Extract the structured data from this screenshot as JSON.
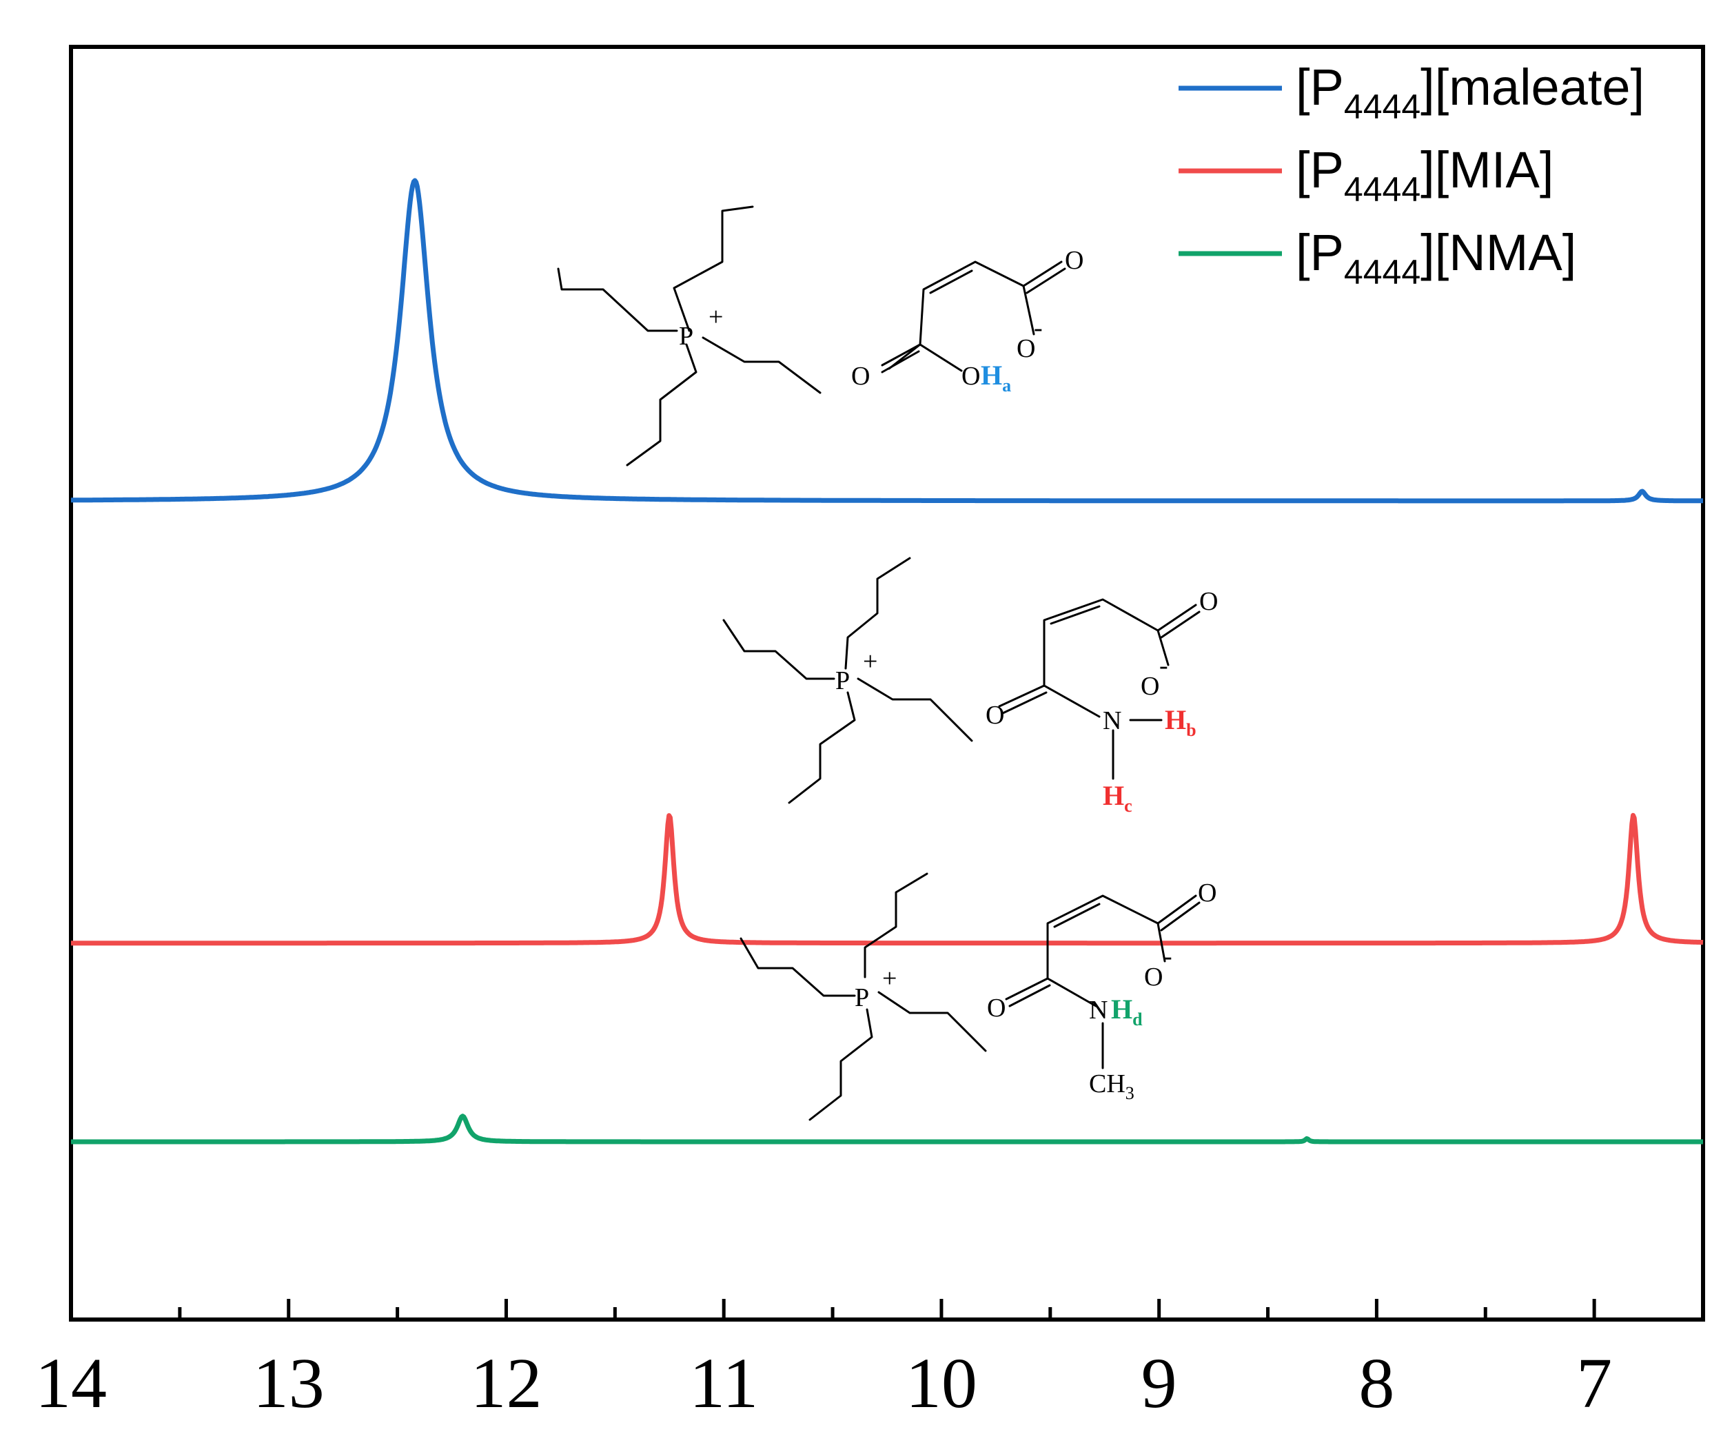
{
  "chart_data": {
    "type": "line",
    "title": "",
    "xlabel": "",
    "ylabel": "",
    "x_reversed": true,
    "xlim": [
      14,
      6.5
    ],
    "major_ticks": [
      14,
      13,
      12,
      11,
      10,
      9,
      8,
      7
    ],
    "minor_ticks": [
      13.5,
      12.5,
      11.5,
      10.5,
      9.5,
      8.5,
      7.5
    ],
    "tick_labels": [
      "14",
      "13",
      "12",
      "11",
      "10",
      "9",
      "8",
      "7"
    ],
    "grid": false,
    "legend_position": "top-right",
    "series": [
      {
        "name_main": "[P",
        "name_sub": "4444",
        "name_rest": "][maleate]",
        "color": "#1f6fc8",
        "offset": 2.0,
        "peaks": [
          {
            "center": 12.42,
            "height": 1.0,
            "width": 0.08
          },
          {
            "center": 6.78,
            "height": 0.03,
            "width": 0.02
          }
        ]
      },
      {
        "name_main": "[P",
        "name_sub": "4444",
        "name_rest": "][MIA]",
        "color": "#f04b4b",
        "offset": 0.62,
        "peaks": [
          {
            "center": 11.25,
            "height": 0.4,
            "width": 0.025
          },
          {
            "center": 6.82,
            "height": 0.4,
            "width": 0.025
          }
        ]
      },
      {
        "name_main": "[P",
        "name_sub": "4444",
        "name_rest": "][NMA]",
        "color": "#11a36a",
        "offset": 0.0,
        "peaks": [
          {
            "center": 12.2,
            "height": 0.08,
            "width": 0.03
          },
          {
            "center": 8.32,
            "height": 0.01,
            "width": 0.01
          }
        ]
      }
    ],
    "annotations": {
      "cation_plus": "+",
      "anion_oxygen": "O",
      "anion_charge": "-",
      "phosphorus": "P",
      "hydroxyl_o": "O",
      "nitrogen": "N",
      "proton_a": "H",
      "proton_a_sub": "a",
      "proton_b": "H",
      "proton_b_sub": "b",
      "proton_c": "H",
      "proton_c_sub": "c",
      "proton_d": "H",
      "proton_d_sub": "d",
      "methyl": "CH",
      "methyl_sub": "3"
    }
  }
}
